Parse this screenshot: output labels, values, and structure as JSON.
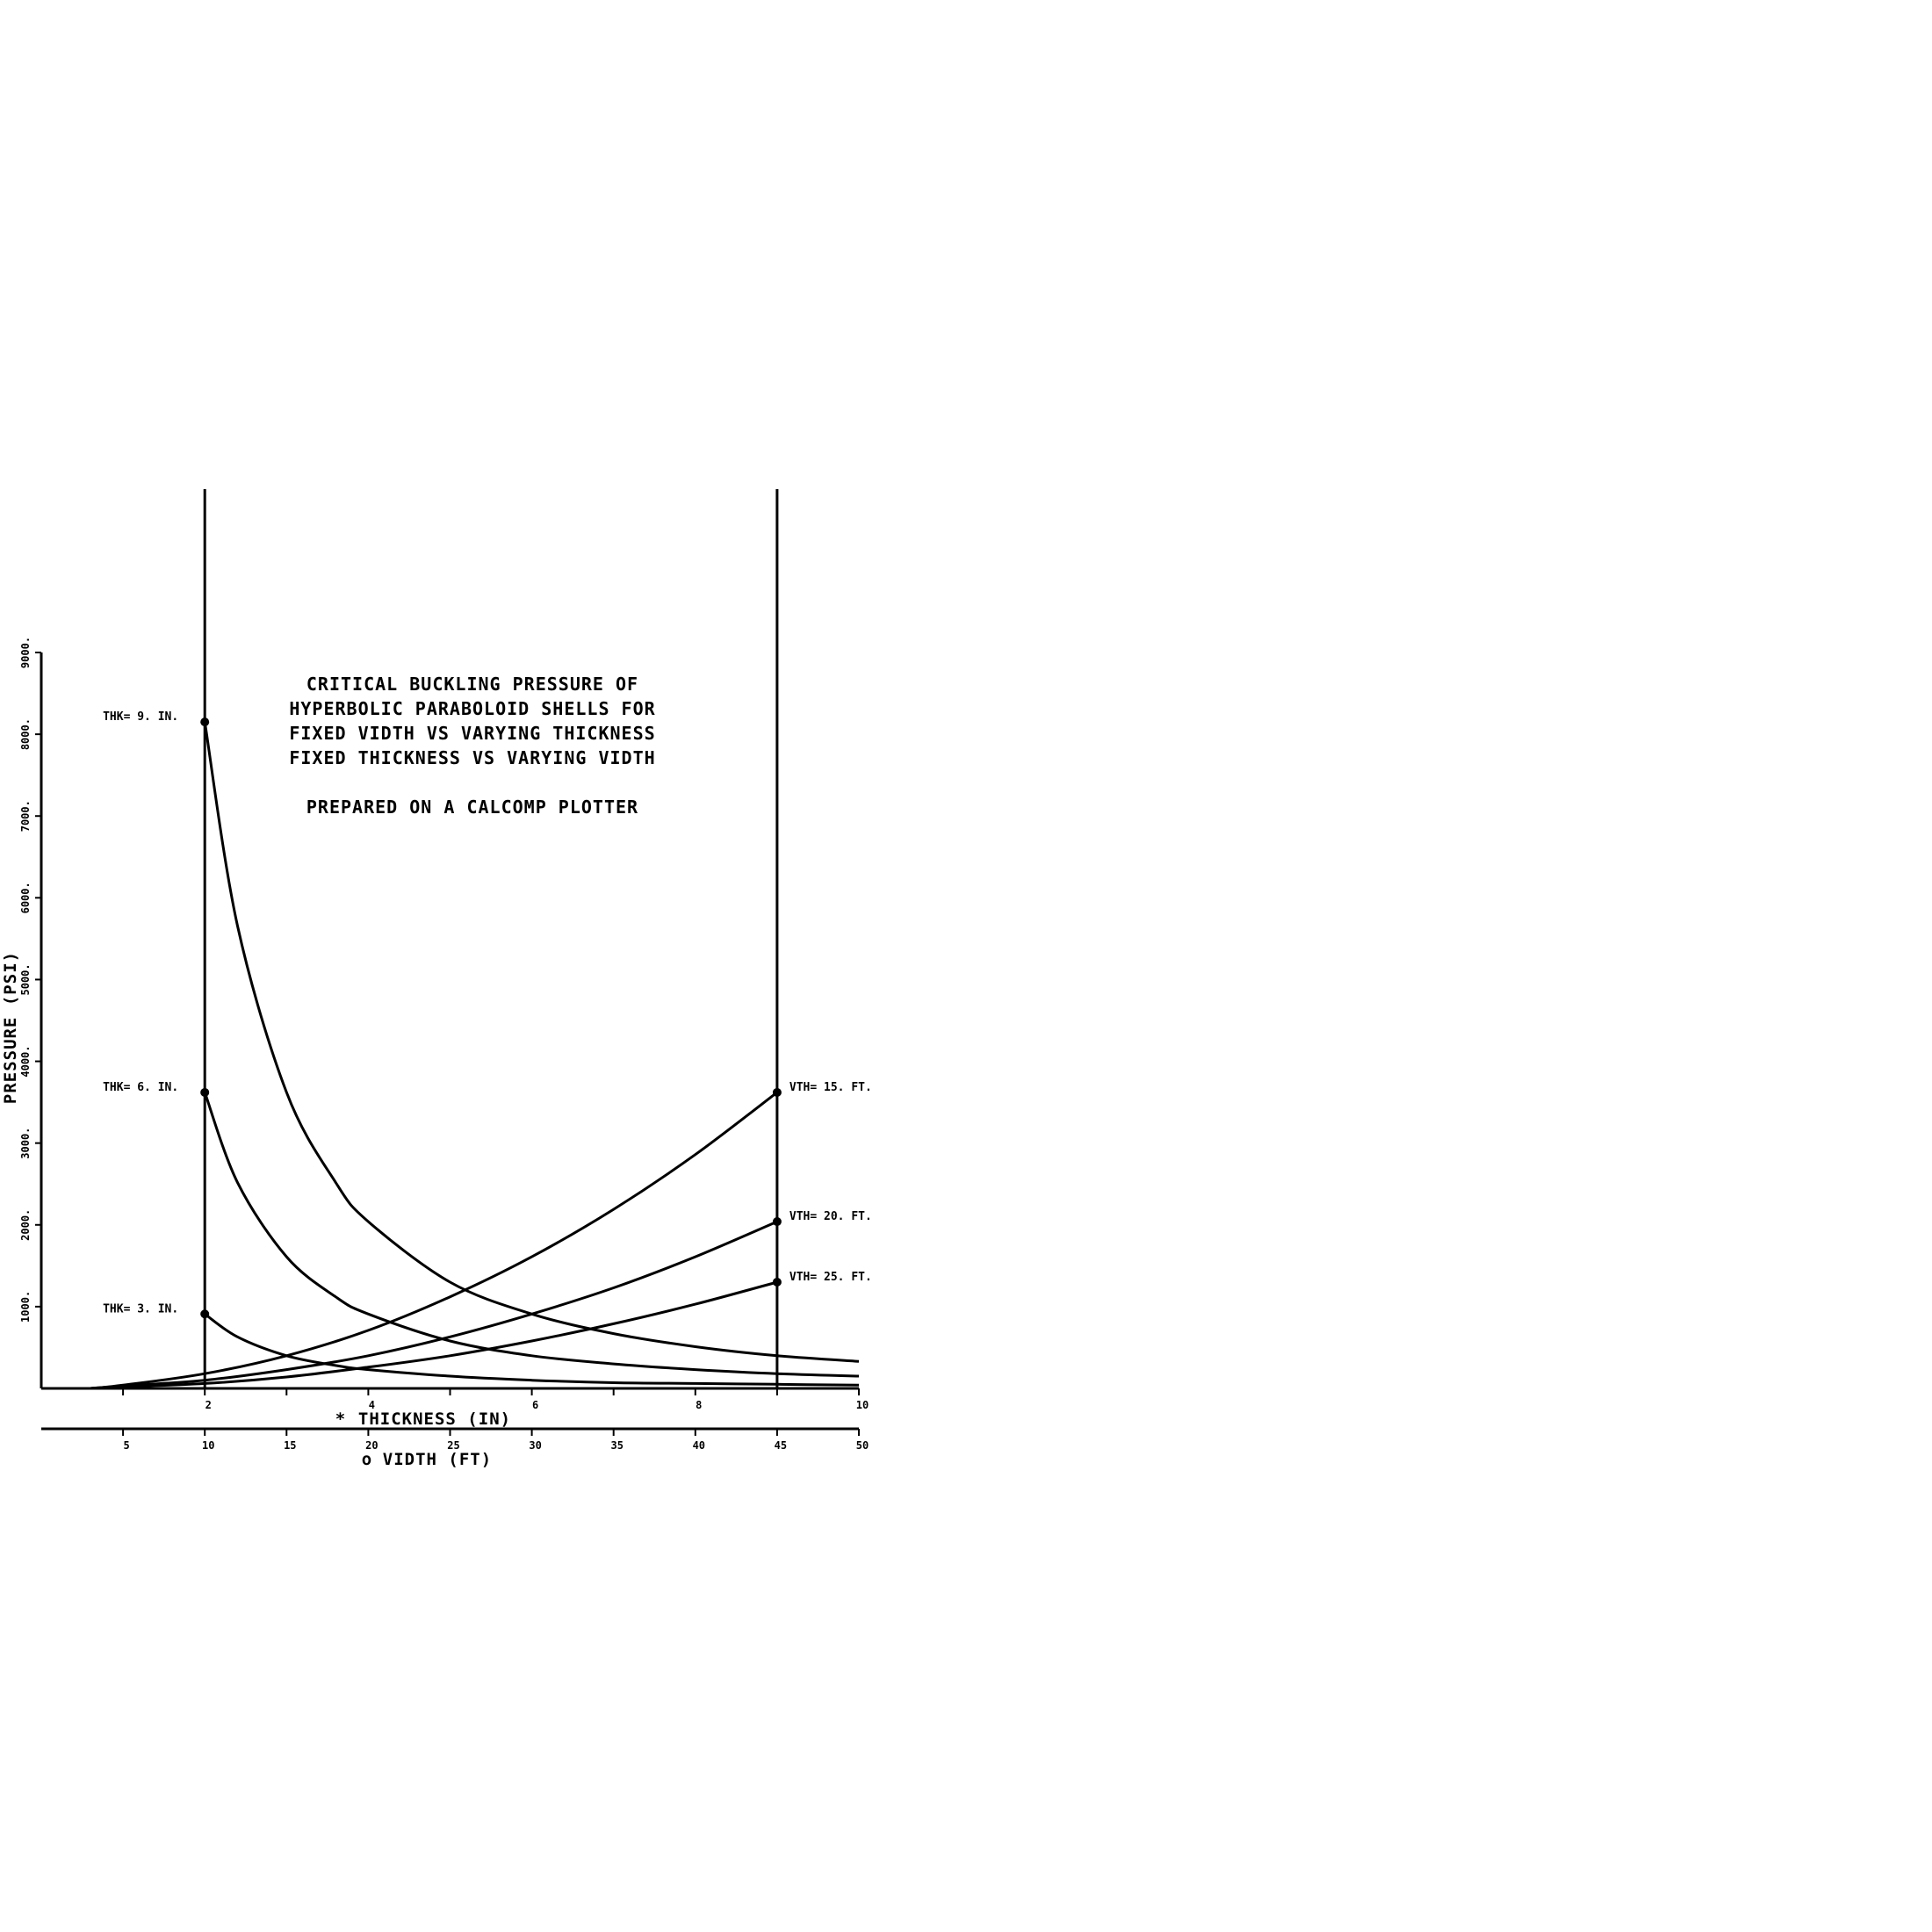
{
  "chart_data": {
    "type": "line",
    "title_lines": [
      "CRITICAL BUCKLING PRESSURE OF",
      "HYPERBOLIC PARABOLOID SHELLS FOR",
      "FIXED VIDTH VS VARYING THICKNESS",
      "FIXED THICKNESS VS VARYING VIDTH"
    ],
    "subtitle": "PREPARED ON A CALCOMP PLOTTER",
    "ylabel": "PRESSURE (PSI)",
    "xlabel_thickness": "THICKNESS (IN)",
    "xlabel_width": "VIDTH (FT)",
    "xlabel_thickness_marker": "*",
    "xlabel_width_marker": "o",
    "ylim": [
      0,
      9000
    ],
    "yticks": [
      1000,
      2000,
      3000,
      4000,
      5000,
      6000,
      7000,
      8000,
      9000
    ],
    "ytick_labels": [
      "1000.",
      "2000.",
      "3000.",
      "4000.",
      "5000.",
      "6000.",
      "7000.",
      "8000.",
      "9000."
    ],
    "thickness_axis": {
      "range": [
        0,
        10
      ],
      "ticks": [
        1,
        2,
        3,
        4,
        5,
        6,
        7,
        8,
        9,
        10
      ],
      "tick_labels": [
        "2",
        "4",
        "6",
        "8",
        "10"
      ]
    },
    "width_axis": {
      "range": [
        0,
        50
      ],
      "ticks": [
        5,
        10,
        15,
        20,
        25,
        30,
        35,
        40,
        45,
        50
      ],
      "tick_labels": [
        "5",
        "10",
        "15",
        "20",
        "25",
        "30",
        "35",
        "40",
        "45",
        "50"
      ]
    },
    "reference_lines": {
      "width_ft": [
        10,
        45
      ]
    },
    "series": [
      {
        "name": "THK= 9. IN.",
        "x_axis": "width_ft",
        "x": [
          10,
          12,
          15,
          18,
          20,
          25,
          30,
          35,
          40,
          45,
          50
        ],
        "y": [
          8150,
          5660,
          3620,
          2520,
          2040,
          1300,
          910,
          670,
          510,
          400,
          330
        ]
      },
      {
        "name": "THK= 6. IN.",
        "x_axis": "width_ft",
        "x": [
          10,
          12,
          15,
          18,
          20,
          25,
          30,
          35,
          40,
          45,
          50
        ],
        "y": [
          3620,
          2520,
          1610,
          1120,
          910,
          580,
          400,
          300,
          230,
          180,
          150
        ]
      },
      {
        "name": "THK= 3. IN.",
        "x_axis": "width_ft",
        "x": [
          10,
          12,
          15,
          18,
          20,
          25,
          30,
          35,
          40,
          45,
          50
        ],
        "y": [
          910,
          630,
          400,
          280,
          230,
          150,
          100,
          70,
          60,
          50,
          40
        ]
      },
      {
        "name": "VTH= 15. FT.",
        "x_axis": "thickness_in",
        "x": [
          1,
          2,
          3,
          4,
          5,
          6,
          7,
          8,
          9
        ],
        "y": [
          40,
          180,
          400,
          710,
          1120,
          1610,
          2190,
          2860,
          3620
        ]
      },
      {
        "name": "VTH= 20. FT.",
        "x_axis": "thickness_in",
        "x": [
          1,
          2,
          3,
          4,
          5,
          6,
          7,
          8,
          9
        ],
        "y": [
          30,
          100,
          230,
          400,
          630,
          910,
          1230,
          1610,
          2040
        ]
      },
      {
        "name": "VTH= 25. FT.",
        "x_axis": "thickness_in",
        "x": [
          1,
          2,
          3,
          4,
          5,
          6,
          7,
          8,
          9
        ],
        "y": [
          20,
          60,
          140,
          260,
          400,
          580,
          790,
          1030,
          1300
        ]
      }
    ],
    "grid": false,
    "legend": "none"
  }
}
